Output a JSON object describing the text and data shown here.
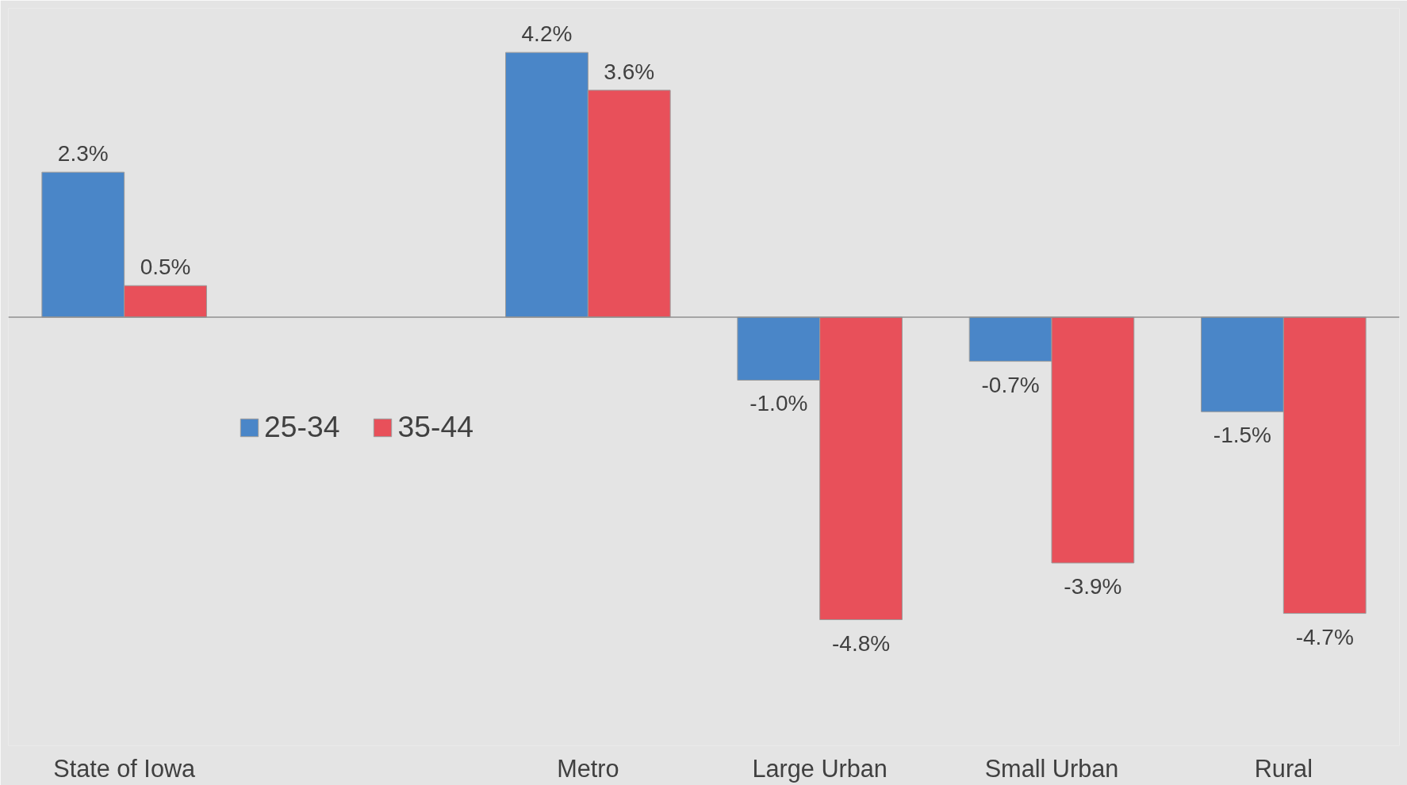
{
  "chart_data": {
    "type": "bar",
    "categories": [
      "State of Iowa",
      null,
      "Metro",
      "Large Urban",
      "Small Urban",
      "Rural"
    ],
    "ylim": [
      -6.8,
      4.9
    ],
    "tick_labels": "x",
    "legend": "left",
    "series": [
      {
        "name": "25-34",
        "color": "#4a86c8",
        "values": [
          2.3,
          null,
          4.2,
          -1.0,
          -0.7,
          -1.5
        ],
        "value_labels": [
          "2.3%",
          null,
          "4.2%",
          "-1.0%",
          "-0.7%",
          "-1.5%"
        ]
      },
      {
        "name": "35-44",
        "color": "#e8505a",
        "values": [
          0.5,
          null,
          3.6,
          -4.8,
          -3.9,
          -4.7
        ],
        "value_labels": [
          "0.5%",
          null,
          "3.6%",
          "-4.8%",
          "-3.9%",
          "-4.7%"
        ]
      }
    ]
  }
}
